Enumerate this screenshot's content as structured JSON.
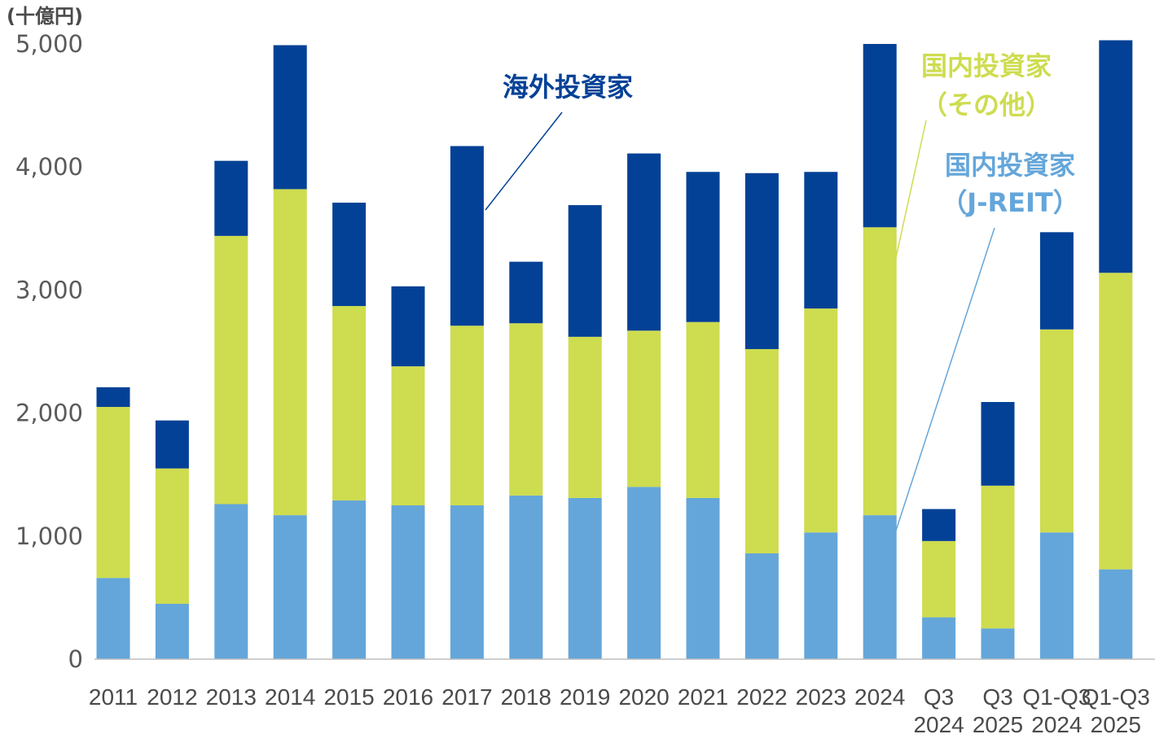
{
  "chart_data": {
    "type": "bar",
    "stacked": true,
    "unit_label": "(十億円)",
    "title": "",
    "xlabel": "",
    "ylabel": "",
    "ylim": [
      0,
      5000
    ],
    "y_ticks": [
      "0",
      "1,000",
      "2,000",
      "3,000",
      "4,000",
      "5,000"
    ],
    "y_tick_values": [
      0,
      1000,
      2000,
      3000,
      4000,
      5000
    ],
    "grid": false,
    "categories": [
      [
        "2011"
      ],
      [
        "2012"
      ],
      [
        "2013"
      ],
      [
        "2014"
      ],
      [
        "2015"
      ],
      [
        "2016"
      ],
      [
        "2017"
      ],
      [
        "2018"
      ],
      [
        "2019"
      ],
      [
        "2020"
      ],
      [
        "2021"
      ],
      [
        "2022"
      ],
      [
        "2023"
      ],
      [
        "2024"
      ],
      [
        "Q3",
        "2024"
      ],
      [
        "Q3",
        "2025"
      ],
      [
        "Q1-Q3",
        "2024"
      ],
      [
        "Q1-Q3",
        "2025"
      ]
    ],
    "series": [
      {
        "name": "国内投資家（J-REIT）",
        "color": "#64a6da",
        "values": [
          660,
          450,
          1260,
          1170,
          1290,
          1250,
          1250,
          1330,
          1310,
          1400,
          1310,
          860,
          1030,
          1170,
          340,
          250,
          1030,
          730
        ]
      },
      {
        "name": "国内投資家（その他）",
        "color": "#cedc4f",
        "values": [
          1390,
          1100,
          2180,
          2650,
          1580,
          1130,
          1460,
          1400,
          1310,
          1270,
          1430,
          1660,
          1820,
          2340,
          620,
          1160,
          1650,
          2410
        ]
      },
      {
        "name": "海外投資家",
        "color": "#034196",
        "values": [
          160,
          390,
          610,
          1170,
          840,
          650,
          1460,
          500,
          1070,
          1440,
          1220,
          1430,
          1110,
          1490,
          260,
          680,
          790,
          1890
        ]
      }
    ],
    "annotations": [
      {
        "lines": [
          "海外投資家"
        ],
        "series": "海外投資家",
        "color": "#034196"
      },
      {
        "lines": [
          "国内投資家",
          "（その他）"
        ],
        "series": "国内投資家（その他）",
        "color": "#cedc4f"
      },
      {
        "lines": [
          "国内投資家",
          "（J-REIT）"
        ],
        "series": "国内投資家（J-REIT）",
        "color": "#64a6da"
      }
    ]
  }
}
